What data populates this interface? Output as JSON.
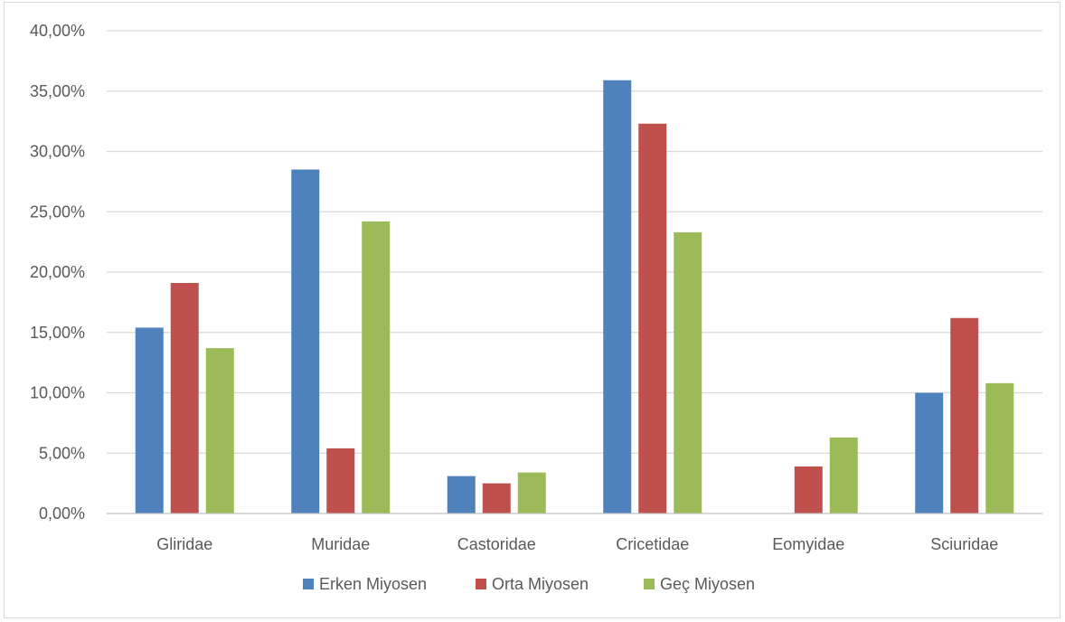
{
  "chart_data": {
    "type": "bar",
    "categories": [
      "Gliridae",
      "Muridae",
      "Castoridae",
      "Cricetidae",
      "Eomyidae",
      "Sciuridae"
    ],
    "series": [
      {
        "name": "Erken Miyosen",
        "color": "#4F81BD",
        "values": [
          15.4,
          28.5,
          3.1,
          35.9,
          0.0,
          10.0
        ]
      },
      {
        "name": "Orta Miyosen",
        "color": "#C0504D",
        "values": [
          19.1,
          5.4,
          2.5,
          32.3,
          3.9,
          16.2
        ]
      },
      {
        "name": "Geç Miyosen",
        "color": "#9BBB59",
        "values": [
          13.7,
          24.2,
          3.4,
          23.3,
          6.3,
          10.8
        ]
      }
    ],
    "yticks": [
      "0,00%",
      "5,00%",
      "10,00%",
      "15,00%",
      "20,00%",
      "25,00%",
      "30,00%",
      "35,00%",
      "40,00%"
    ],
    "ylim": [
      0,
      40
    ],
    "grid": true,
    "legend_position": "bottom",
    "gridline_color": "#d9d9d9"
  }
}
